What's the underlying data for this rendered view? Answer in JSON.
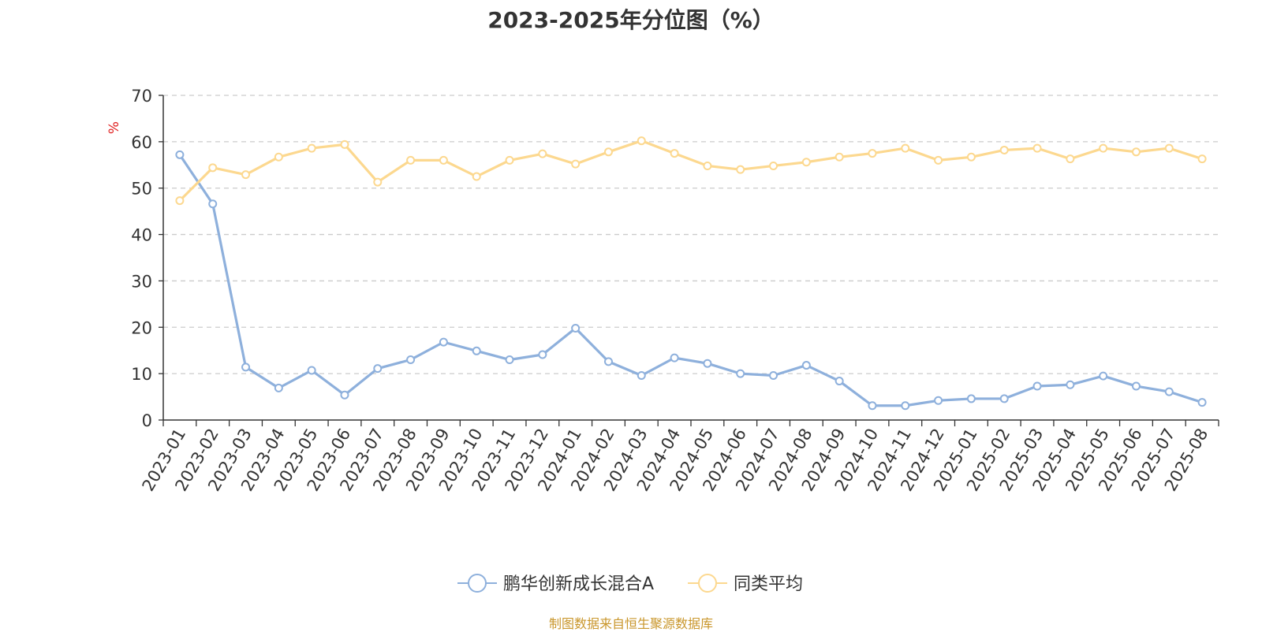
{
  "chart_data": {
    "type": "line",
    "title": "2023-2025年分位图（%）",
    "ylabel": "%",
    "ylim": [
      0,
      70
    ],
    "yticks": [
      "0",
      "10",
      "20",
      "30",
      "40",
      "50",
      "60",
      "70"
    ],
    "grid": true,
    "legend_position": "bottom",
    "categories": [
      "2023-01",
      "2023-02",
      "2023-03",
      "2023-04",
      "2023-05",
      "2023-06",
      "2023-07",
      "2023-08",
      "2023-09",
      "2023-10",
      "2023-11",
      "2023-12",
      "2024-01",
      "2024-02",
      "2024-03",
      "2024-04",
      "2024-05",
      "2024-06",
      "2024-07",
      "2024-08",
      "2024-09",
      "2024-10",
      "2024-11",
      "2024-12",
      "2025-01",
      "2025-02",
      "2025-03",
      "2025-04",
      "2025-05",
      "2025-06",
      "2025-07",
      "2025-08"
    ],
    "series": [
      {
        "name": "鹏华创新成长混合A",
        "color": "#8eb0dc",
        "values": [
          57.2,
          46.6,
          11.4,
          6.9,
          10.7,
          5.4,
          11.1,
          13.0,
          16.8,
          14.9,
          13.0,
          14.1,
          19.8,
          12.6,
          9.6,
          13.4,
          12.2,
          10.0,
          9.6,
          11.8,
          8.4,
          3.1,
          3.1,
          4.2,
          4.6,
          4.6,
          7.3,
          7.6,
          9.5,
          7.3,
          6.1,
          3.8
        ]
      },
      {
        "name": "同类平均",
        "color": "#fcd88f",
        "values": [
          47.3,
          54.4,
          52.9,
          56.7,
          58.6,
          59.4,
          51.3,
          56.0,
          56.0,
          52.5,
          56.0,
          57.4,
          55.2,
          57.8,
          60.2,
          57.5,
          54.8,
          54.0,
          54.8,
          55.6,
          56.7,
          57.5,
          58.6,
          56.0,
          56.7,
          58.2,
          58.6,
          56.3,
          58.6,
          57.8,
          58.6,
          56.3
        ]
      }
    ]
  },
  "footer": {
    "source": "制图数据来自恒生聚源数据库"
  }
}
